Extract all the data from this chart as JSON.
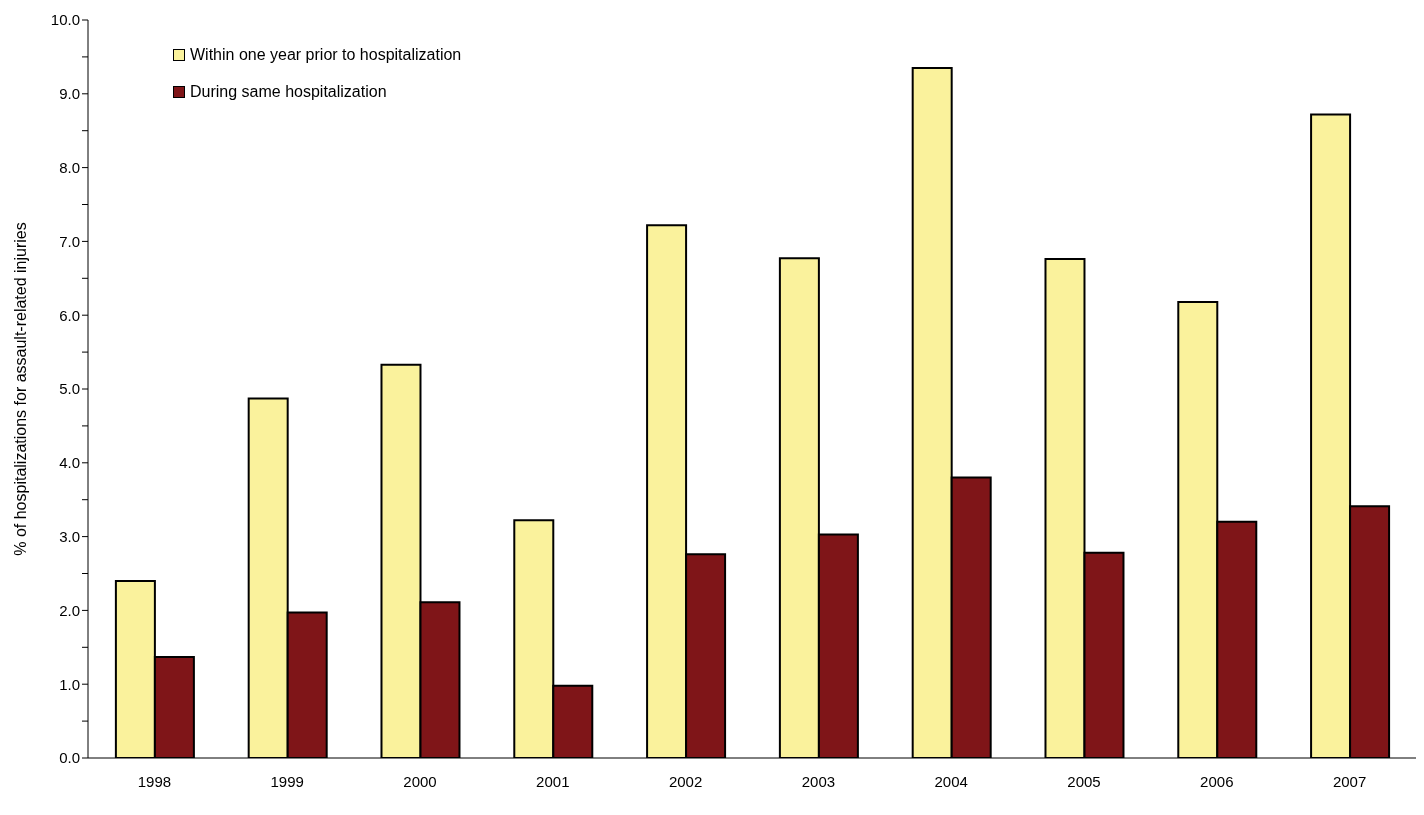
{
  "chart_data": {
    "type": "bar",
    "ylabel": "% of hospitalizations for assault-related injuries",
    "categories": [
      "1998",
      "1999",
      "2000",
      "2001",
      "2002",
      "2003",
      "2004",
      "2005",
      "2006",
      "2007"
    ],
    "series": [
      {
        "name": "Within one year prior to hospitalization",
        "color": "#faf29c",
        "values": [
          2.4,
          4.87,
          5.33,
          3.22,
          7.22,
          6.77,
          9.35,
          6.76,
          6.18,
          8.72
        ]
      },
      {
        "name": "During same hospitalization",
        "color": "#7f1518",
        "values": [
          1.37,
          1.97,
          2.11,
          0.98,
          2.76,
          3.03,
          3.8,
          2.78,
          3.2,
          3.41
        ]
      }
    ],
    "ylim": [
      0,
      10
    ],
    "yticks": [
      {
        "value": 0,
        "label": "0.0"
      },
      {
        "value": 0.5,
        "label": null
      },
      {
        "value": 1,
        "label": "1.0"
      },
      {
        "value": 1.5,
        "label": null
      },
      {
        "value": 2,
        "label": "2.0"
      },
      {
        "value": 2.5,
        "label": null
      },
      {
        "value": 3,
        "label": "3.0"
      },
      {
        "value": 3.5,
        "label": null
      },
      {
        "value": 4,
        "label": "4.0"
      },
      {
        "value": 4.5,
        "label": null
      },
      {
        "value": 5,
        "label": "5.0"
      },
      {
        "value": 5.5,
        "label": null
      },
      {
        "value": 6,
        "label": "6.0"
      },
      {
        "value": 6.5,
        "label": null
      },
      {
        "value": 7,
        "label": "7.0"
      },
      {
        "value": 7.5,
        "label": null
      },
      {
        "value": 8,
        "label": "8.0"
      },
      {
        "value": 8.5,
        "label": null
      },
      {
        "value": 9,
        "label": "9.0"
      },
      {
        "value": 9.5,
        "label": null
      },
      {
        "value": 10,
        "label": "10.0"
      }
    ],
    "grid": false,
    "legend": "top left"
  }
}
